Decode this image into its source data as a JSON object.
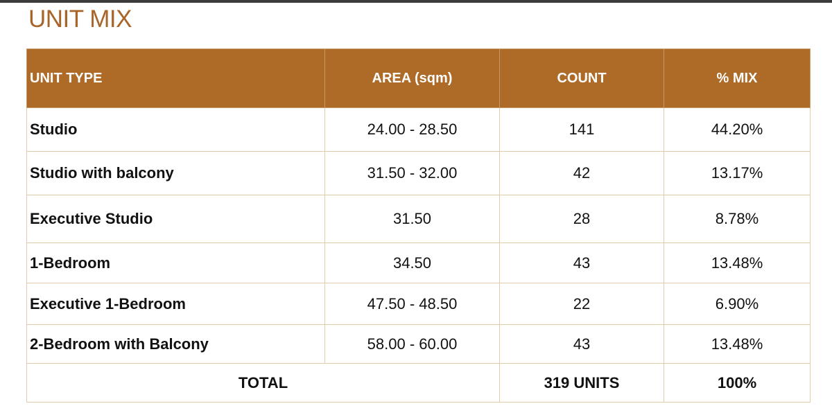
{
  "header": {
    "title": "UNIT MIX"
  },
  "table": {
    "columns": [
      "UNIT TYPE",
      "AREA (sqm)",
      "COUNT",
      "% MIX"
    ],
    "rows": [
      [
        "Studio",
        "24.00 - 28.50",
        "141",
        "44.20%"
      ],
      [
        "Studio with balcony",
        "31.50 - 32.00",
        "42",
        "13.17%"
      ],
      [
        "Executive Studio",
        "31.50",
        "28",
        "8.78%"
      ],
      [
        "1-Bedroom",
        "34.50",
        "43",
        "13.48%"
      ],
      [
        "Executive 1-Bedroom",
        "47.50 - 48.50",
        "22",
        "6.90%"
      ],
      [
        "2-Bedroom with Balcony",
        "58.00 - 60.00",
        "43",
        "13.48%"
      ]
    ],
    "total": [
      "TOTAL",
      "319 UNITS",
      "100%"
    ]
  }
}
